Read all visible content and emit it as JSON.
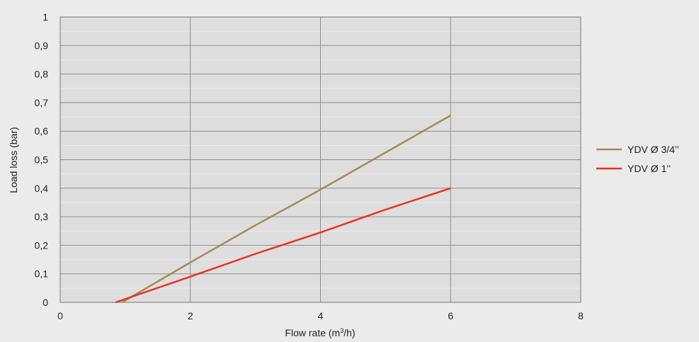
{
  "chart_data": {
    "type": "line",
    "xlabel": "Flow rate (m3/h)",
    "xlabel_main": "Flow rate (m",
    "xlabel_sup": "3",
    "xlabel_end": "/h)",
    "ylabel": "Load loss (bar)",
    "xlim": [
      0,
      8
    ],
    "ylim": [
      0,
      1
    ],
    "x_ticks": [
      0,
      2,
      4,
      6,
      8
    ],
    "x_tick_labels": [
      "0",
      "2",
      "4",
      "6",
      "8"
    ],
    "y_ticks": [
      0,
      0.1,
      0.2,
      0.3,
      0.4,
      0.5,
      0.6,
      0.7,
      0.8,
      0.9,
      1
    ],
    "y_tick_labels": [
      "0",
      "0,1",
      "0,2",
      "0,3",
      "0,4",
      "0,5",
      "0,6",
      "0,7",
      "0,8",
      "0,9",
      "1"
    ],
    "grid": true,
    "legend_position": "right",
    "series": [
      {
        "name": "YDV Ø 3/4’’",
        "color": "#a68a55",
        "points": [
          [
            0.95,
            0
          ],
          [
            2,
            0.14
          ],
          [
            3,
            0.27
          ],
          [
            4,
            0.395
          ],
          [
            5,
            0.525
          ],
          [
            6,
            0.655
          ]
        ]
      },
      {
        "name": "YDV Ø 1’’",
        "color": "#e8321e",
        "points": [
          [
            0.85,
            0
          ],
          [
            2,
            0.09
          ],
          [
            3,
            0.17
          ],
          [
            4,
            0.245
          ],
          [
            5,
            0.325
          ],
          [
            6,
            0.4
          ]
        ]
      }
    ]
  }
}
